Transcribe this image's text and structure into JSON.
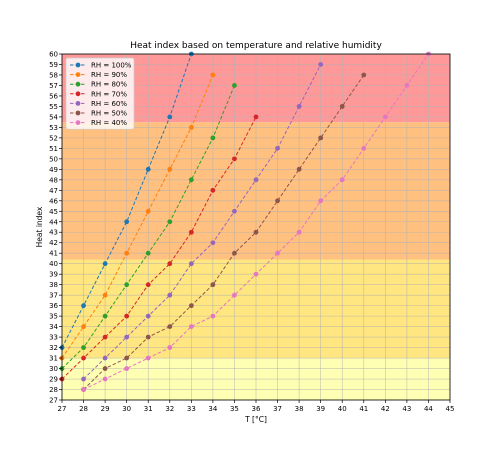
{
  "chart_data": {
    "type": "line",
    "title": "Heat index based on temperature and relative humidity",
    "xlabel": "T [°C]",
    "ylabel": "Heat index",
    "xlim": [
      27,
      45
    ],
    "ylim": [
      27,
      60
    ],
    "grid": true,
    "legend_position": "top-left",
    "bands": [
      {
        "from": 27,
        "to": 31,
        "color": "#ffffb3"
      },
      {
        "from": 31,
        "to": 40.4,
        "color": "#ffe680"
      },
      {
        "from": 40.4,
        "to": 53.5,
        "color": "#ffc080"
      },
      {
        "from": 53.5,
        "to": 60,
        "color": "#ff9999"
      }
    ],
    "series": [
      {
        "name": "RH = 100%",
        "color": "#1f77b4",
        "x": [
          27,
          28,
          29,
          30,
          31,
          32,
          33
        ],
        "y": [
          32,
          36,
          40,
          44,
          49,
          54,
          60
        ]
      },
      {
        "name": "RH = 90%",
        "color": "#ff7f0e",
        "x": [
          27,
          28,
          29,
          30,
          31,
          32,
          33,
          34
        ],
        "y": [
          31,
          34,
          37,
          41,
          45,
          49,
          53,
          58
        ]
      },
      {
        "name": "RH = 80%",
        "color": "#2ca02c",
        "x": [
          27,
          28,
          29,
          30,
          31,
          32,
          33,
          34,
          35
        ],
        "y": [
          30,
          32,
          35,
          38,
          41,
          44,
          48,
          52,
          57
        ]
      },
      {
        "name": "RH = 70%",
        "color": "#d62728",
        "x": [
          27,
          28,
          29,
          30,
          31,
          32,
          33,
          34,
          35,
          36
        ],
        "y": [
          29,
          31,
          33,
          35,
          38,
          40,
          43,
          47,
          50,
          54
        ]
      },
      {
        "name": "RH = 60%",
        "color": "#9467bd",
        "x": [
          28,
          29,
          30,
          31,
          32,
          33,
          34,
          35,
          36,
          37,
          38,
          39
        ],
        "y": [
          29,
          31,
          33,
          35,
          37,
          40,
          42,
          45,
          48,
          51,
          55,
          59
        ]
      },
      {
        "name": "RH = 50%",
        "color": "#8c564b",
        "x": [
          28,
          29,
          30,
          31,
          32,
          33,
          34,
          35,
          36,
          37,
          38,
          39,
          40,
          41
        ],
        "y": [
          28,
          30,
          31,
          33,
          34,
          36,
          38,
          41,
          43,
          46,
          49,
          52,
          55,
          58
        ]
      },
      {
        "name": "RH = 40%",
        "color": "#e377c2",
        "x": [
          28,
          29,
          30,
          31,
          32,
          33,
          34,
          35,
          36,
          37,
          38,
          39,
          40,
          41,
          42,
          43,
          44
        ],
        "y": [
          28,
          29,
          30,
          31,
          32,
          34,
          35,
          37,
          39,
          41,
          43,
          46,
          48,
          51,
          54,
          57,
          60
        ]
      }
    ]
  }
}
